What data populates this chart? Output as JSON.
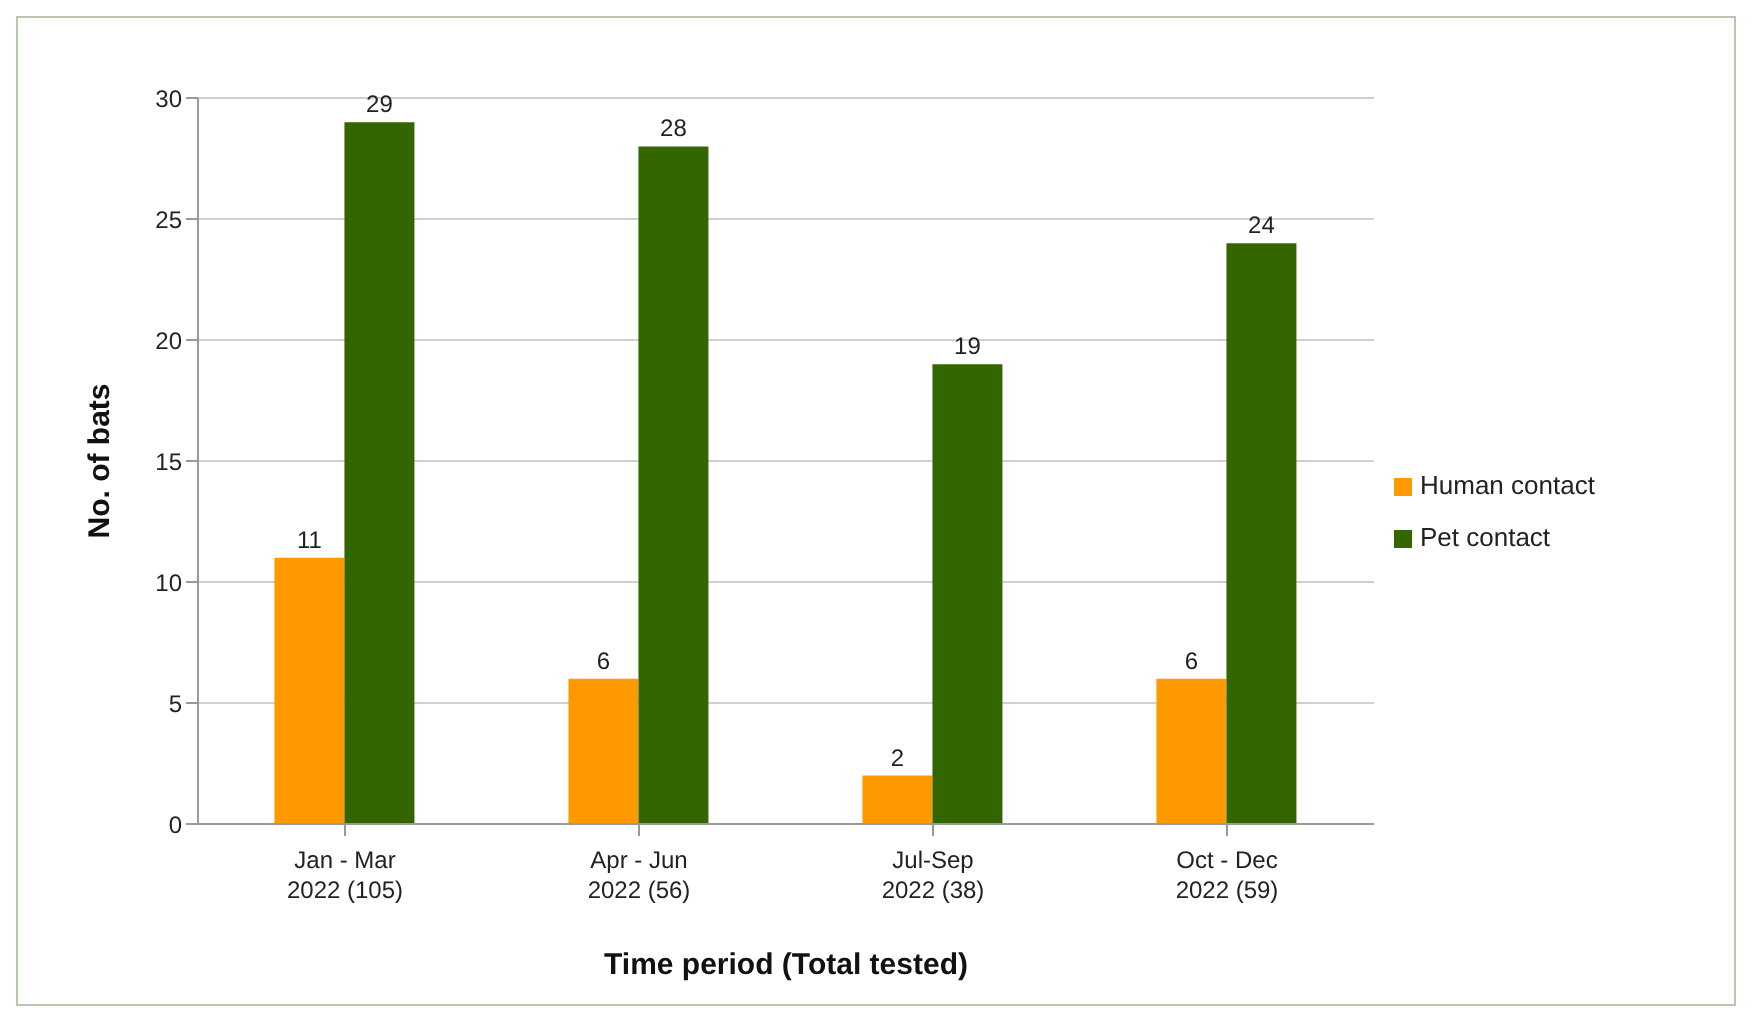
{
  "chart_data": {
    "type": "bar",
    "xlabel": "Time period (Total tested)",
    "ylabel": "No. of bats",
    "categories": [
      "Jan - Mar\n2022 (105)",
      "Apr - Jun\n2022 (56)",
      "Jul-Sep\n2022 (38)",
      "Oct - Dec\n2022 (59)"
    ],
    "series": [
      {
        "name": "Human contact",
        "color": "#ff9900",
        "values": [
          11,
          6,
          2,
          6
        ]
      },
      {
        "name": "Pet contact",
        "color": "#336600",
        "values": [
          29,
          28,
          19,
          24
        ]
      }
    ],
    "ylim": [
      0,
      30
    ],
    "yticks": [
      0,
      5,
      10,
      15,
      20,
      25,
      30
    ],
    "grid": "y",
    "legend": "right",
    "data_labels": true
  }
}
